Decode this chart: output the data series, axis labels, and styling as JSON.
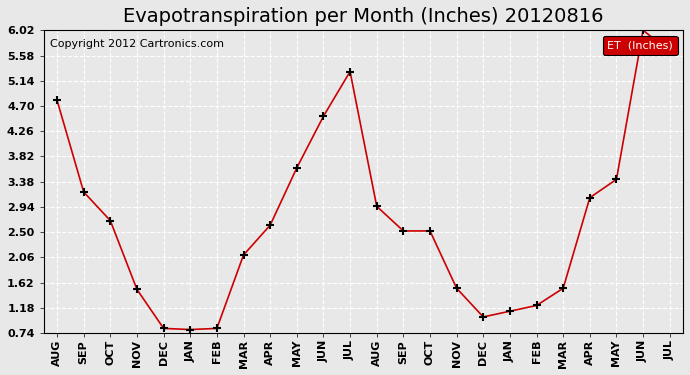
{
  "title": "Evapotranspiration per Month (Inches) 20120816",
  "copyright": "Copyright 2012 Cartronics.com",
  "legend_label": "ET  (Inches)",
  "x_labels": [
    "AUG",
    "SEP",
    "OCT",
    "NOV",
    "DEC",
    "JAN",
    "FEB",
    "MAR",
    "APR",
    "MAY",
    "JUN",
    "JUL",
    "AUG",
    "SEP",
    "OCT",
    "NOV",
    "DEC",
    "JAN",
    "FEB",
    "MAR",
    "APR",
    "MAY",
    "JUN",
    "JUL"
  ],
  "y_values": [
    4.8,
    3.2,
    2.7,
    1.5,
    0.82,
    0.8,
    0.82,
    2.1,
    2.62,
    3.62,
    4.52,
    5.3,
    2.95,
    2.52,
    2.52,
    1.52,
    1.02,
    1.12,
    1.22,
    1.52,
    3.1,
    3.42,
    6.02,
    5.65
  ],
  "y_ticks": [
    0.74,
    1.18,
    1.62,
    2.06,
    2.5,
    2.94,
    3.38,
    3.82,
    4.26,
    4.7,
    5.14,
    5.58,
    6.02
  ],
  "y_min": 0.74,
  "y_max": 6.02,
  "line_color": "#cc0000",
  "marker": "+",
  "background_color": "#e8e8e8",
  "grid_color": "#ffffff",
  "title_fontsize": 14,
  "copyright_fontsize": 8,
  "tick_fontsize": 8,
  "legend_bg": "#cc0000",
  "legend_text_color": "#ffffff"
}
